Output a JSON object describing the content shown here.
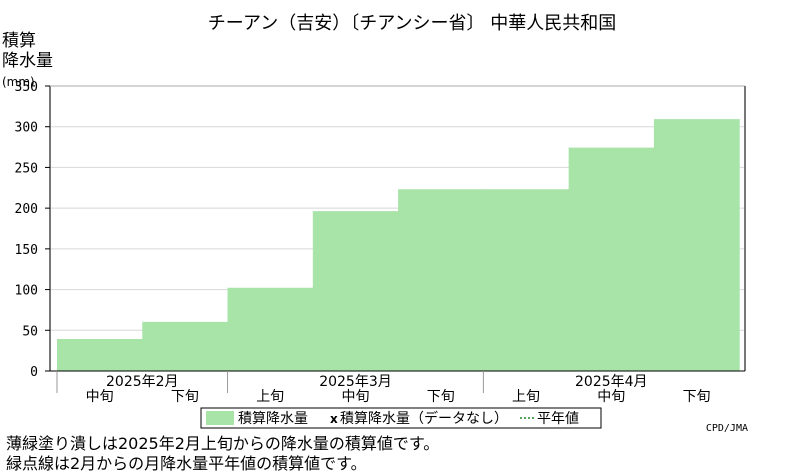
{
  "chart_data": {
    "type": "area",
    "title": "チーアン（吉安）〔チアンシー省〕 中華人民共和国",
    "ylabel_lines": [
      "積算",
      "降水量",
      "(mm)"
    ],
    "ylim": [
      0,
      350
    ],
    "yticks": [
      0,
      50,
      100,
      150,
      200,
      250,
      300,
      350
    ],
    "grid": true,
    "x_categories": [
      "2025年2月中旬",
      "2025年2月下旬",
      "2025年3月上旬",
      "2025年3月中旬",
      "2025年3月下旬",
      "2025年4月上旬",
      "2025年4月中旬",
      "2025年4月下旬"
    ],
    "x_tick_labels": [
      "中旬",
      "下旬",
      "上旬",
      "中旬",
      "下旬",
      "上旬",
      "中旬",
      "下旬"
    ],
    "month_labels": [
      {
        "label": "2025年2月",
        "start_index": 0
      },
      {
        "label": "2025年3月",
        "start_index": 2
      },
      {
        "label": "2025年4月",
        "start_index": 5
      }
    ],
    "series": [
      {
        "name": "積算降水量",
        "style": "filled-step",
        "color": "#a8e3a8",
        "values": [
          40,
          61,
          103,
          197,
          224,
          224,
          275,
          310
        ]
      }
    ],
    "legend": {
      "placement": "bottom-center",
      "entries": [
        {
          "marker": "swatch",
          "color": "#a8e3a8",
          "label": "積算降水量"
        },
        {
          "marker": "x",
          "label": "積算降水量（データなし）"
        },
        {
          "marker": "dotted",
          "label": "平年値"
        }
      ]
    },
    "credit": "CPD/JMA"
  },
  "notes": [
    "薄緑塗り潰しは2025年2月上旬からの降水量の積算値です。",
    "緑点線は2月からの月降水量平年値の積算値です。"
  ]
}
